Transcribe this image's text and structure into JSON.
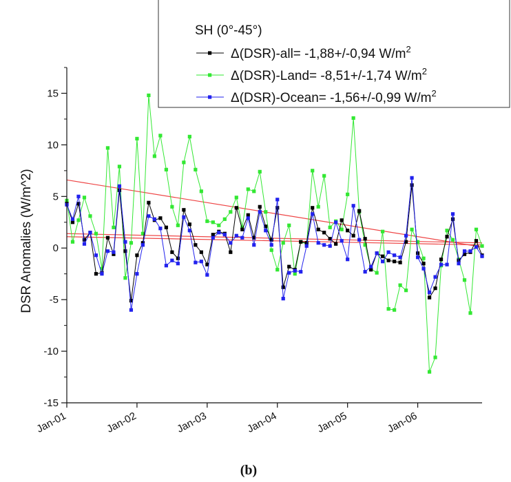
{
  "chart_data": {
    "type": "line",
    "ylabel": "DSR Anomalies (W/m^2)",
    "ylim": [
      -15,
      17.5
    ],
    "yticks": [
      -15,
      -10,
      -5,
      0,
      5,
      10,
      15
    ],
    "xlim": [
      "2001-01",
      "2006-12"
    ],
    "xticks": [
      {
        "label": "Jan-01",
        "date": "2001-01"
      },
      {
        "label": "Jan-02",
        "date": "2002-01"
      },
      {
        "label": "Jan-03",
        "date": "2003-01"
      },
      {
        "label": "Jan-04",
        "date": "2004-01"
      },
      {
        "label": "Jan-05",
        "date": "2005-01"
      },
      {
        "label": "Jan-06",
        "date": "2006-01"
      }
    ],
    "legend": {
      "title": "SH (0°-45°)",
      "placement": "top-right",
      "entries": [
        {
          "prefix": "Δ(DSR)-all= -1,88+/-0,94 W/m",
          "sup": "2"
        },
        {
          "prefix": "Δ(DSR)-Land= -8,51+/-1,74 W/m",
          "sup": "2"
        },
        {
          "prefix": "Δ(DSR)-Ocean= -1,56+/-0,99 W/m",
          "sup": "2"
        }
      ]
    },
    "panel_label": "(b)",
    "colors": {
      "all": "#000000",
      "land": "#33e833",
      "ocean": "#2222ee",
      "trend": "#ee4444"
    },
    "x": [
      "2001-01",
      "2001-02",
      "2001-03",
      "2001-04",
      "2001-05",
      "2001-06",
      "2001-07",
      "2001-08",
      "2001-09",
      "2001-10",
      "2001-11",
      "2001-12",
      "2002-01",
      "2002-02",
      "2002-03",
      "2002-04",
      "2002-05",
      "2002-06",
      "2002-07",
      "2002-08",
      "2002-09",
      "2002-10",
      "2002-11",
      "2002-12",
      "2003-01",
      "2003-02",
      "2003-03",
      "2003-04",
      "2003-05",
      "2003-06",
      "2003-07",
      "2003-08",
      "2003-09",
      "2003-10",
      "2003-11",
      "2003-12",
      "2004-01",
      "2004-02",
      "2004-03",
      "2004-04",
      "2004-05",
      "2004-06",
      "2004-07",
      "2004-08",
      "2004-09",
      "2004-10",
      "2004-11",
      "2004-12",
      "2005-01",
      "2005-02",
      "2005-03",
      "2005-04",
      "2005-05",
      "2005-06",
      "2005-07",
      "2005-08",
      "2005-09",
      "2005-10",
      "2005-11",
      "2005-12",
      "2006-01",
      "2006-02",
      "2006-03",
      "2006-04",
      "2006-05",
      "2006-06",
      "2006-07",
      "2006-08",
      "2006-09",
      "2006-10",
      "2006-11",
      "2006-12"
    ],
    "series": [
      {
        "key": "land",
        "values": [
          4.6,
          0.6,
          2.7,
          4.9,
          3.1,
          1.4,
          -2.0,
          9.7,
          2.0,
          7.9,
          -2.9,
          0.5,
          10.6,
          1.4,
          14.8,
          8.9,
          10.9,
          7.6,
          4.0,
          2.2,
          8.3,
          10.8,
          7.6,
          5.5,
          2.6,
          2.5,
          2.2,
          2.8,
          3.5,
          4.9,
          2.0,
          5.7,
          5.5,
          7.4,
          3.5,
          -0.2,
          -2.1,
          0.5,
          2.2,
          -2.5,
          0.6,
          0.4,
          7.5,
          4.0,
          7.0,
          2.0,
          2.6,
          1.8,
          5.2,
          12.6,
          3.5,
          0.3,
          -2.0,
          -2.4,
          1.6,
          -5.9,
          -6.0,
          -3.6,
          -4.1,
          1.8,
          0.6,
          -1.0,
          -12.0,
          -10.6,
          -1.7,
          1.7,
          0.8,
          -1.1,
          -3.1,
          -6.3,
          1.8,
          0.2
        ]
      },
      {
        "key": "all",
        "values": [
          4.3,
          2.5,
          4.3,
          0.8,
          1.5,
          -2.5,
          -2.4,
          1.0,
          -0.6,
          5.6,
          -0.3,
          -5.1,
          -0.7,
          0.5,
          4.4,
          2.7,
          2.9,
          2.0,
          -0.4,
          -1.0,
          3.7,
          2.3,
          0.3,
          -0.4,
          -1.6,
          1.3,
          1.6,
          1.4,
          -0.4,
          3.9,
          1.8,
          3.2,
          1.0,
          4.0,
          2.1,
          0.8,
          3.9,
          -3.8,
          -1.8,
          -2.1,
          0.6,
          0.5,
          3.9,
          1.8,
          1.5,
          0.9,
          0.4,
          2.7,
          1.7,
          1.2,
          3.6,
          0.9,
          -2.1,
          -0.5,
          -0.8,
          -1.2,
          -1.3,
          -1.4,
          0.6,
          6.1,
          -0.5,
          -1.5,
          -4.8,
          -3.9,
          -1.1,
          1.1,
          2.8,
          -1.2,
          -0.6,
          -0.4,
          0.7,
          -0.7
        ]
      },
      {
        "key": "ocean",
        "values": [
          4.2,
          2.8,
          5.0,
          0.4,
          1.5,
          -0.7,
          -2.5,
          -0.3,
          -0.4,
          6.0,
          0.6,
          -6.0,
          -2.5,
          0.3,
          3.1,
          2.8,
          1.9,
          -1.7,
          -1.2,
          -1.5,
          3.0,
          1.7,
          -1.4,
          -1.3,
          -2.6,
          1.0,
          1.5,
          1.3,
          0.5,
          1.2,
          1.0,
          2.9,
          0.3,
          3.5,
          1.7,
          0.3,
          4.7,
          -4.9,
          -2.4,
          -2.2,
          -2.3,
          0.2,
          3.3,
          0.5,
          0.3,
          0.2,
          2.5,
          0.7,
          -1.1,
          4.1,
          0.8,
          -2.3,
          -1.8,
          -0.5,
          -1.3,
          -0.4,
          -0.7,
          -0.9,
          1.2,
          6.8,
          -0.9,
          -2.0,
          -4.3,
          -2.8,
          -1.6,
          -1.6,
          3.3,
          -1.5,
          -0.3,
          -0.3,
          0.1,
          -0.8
        ]
      }
    ],
    "trend_lines": [
      {
        "start": 6.6,
        "end": 0.1
      },
      {
        "start": 1.4,
        "end": 0.5
      },
      {
        "start": 1.1,
        "end": 0.3
      }
    ]
  }
}
